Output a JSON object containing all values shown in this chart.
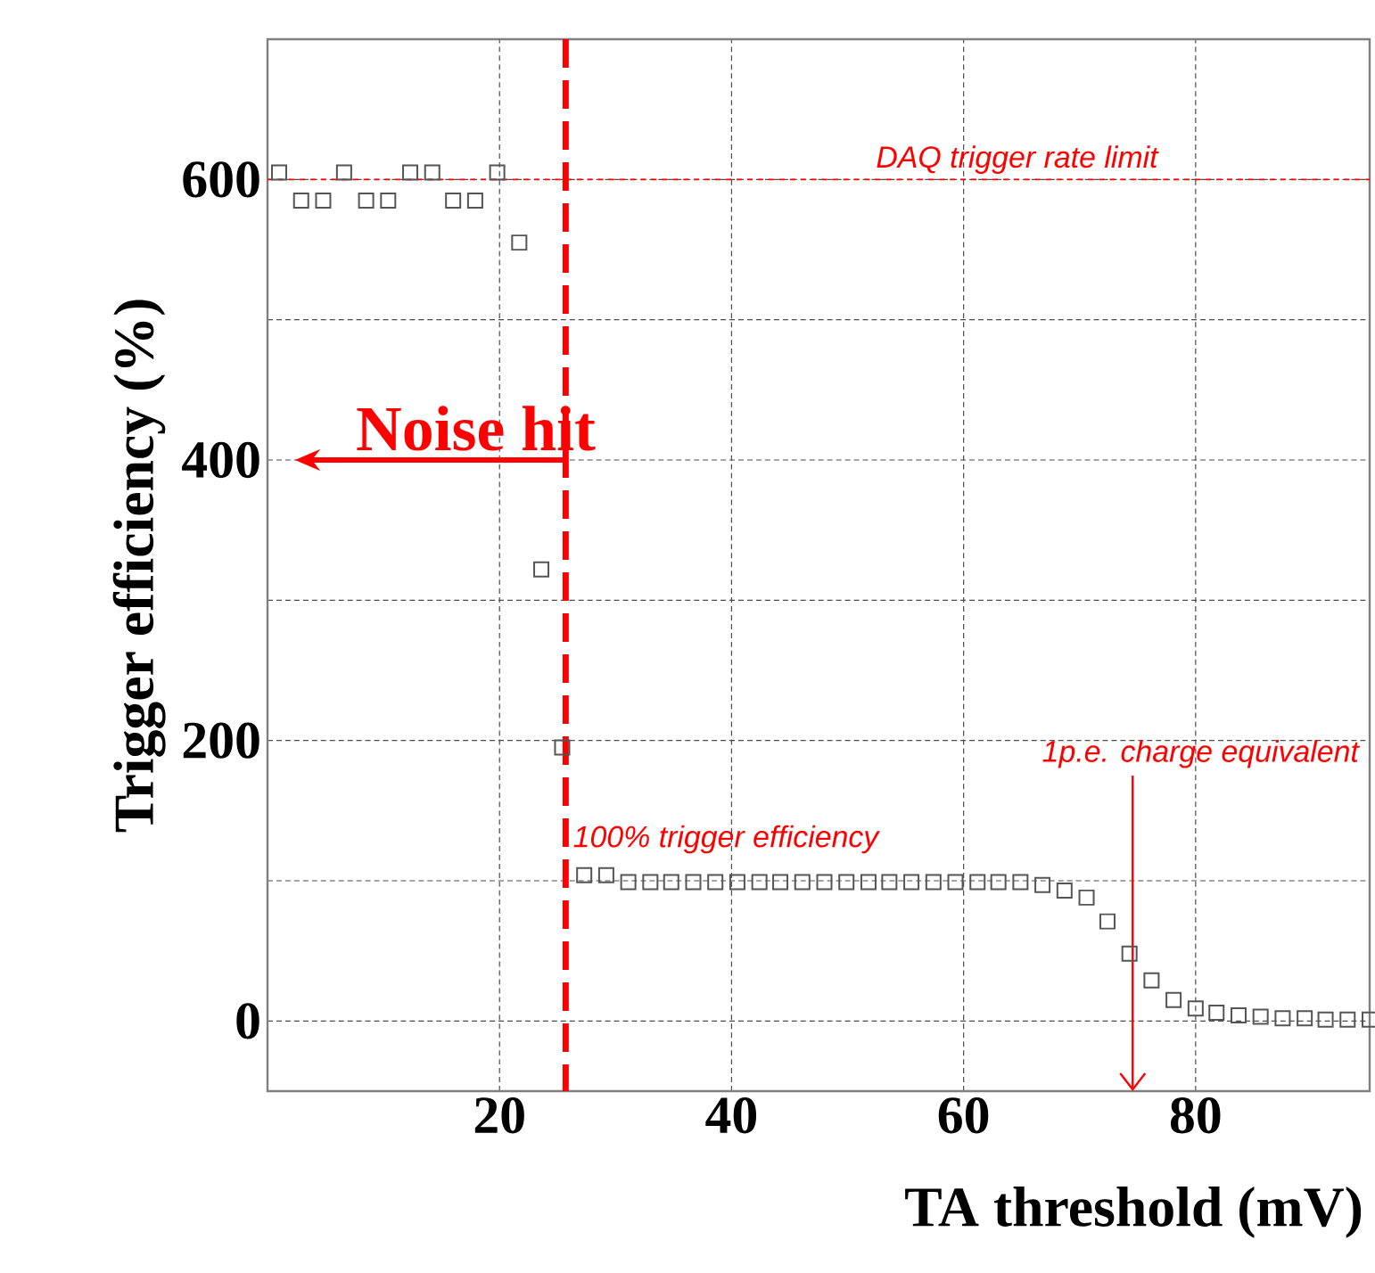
{
  "chart_data": {
    "type": "scatter",
    "xlabel": "TA threshold (mV)",
    "ylabel": "Trigger efficiency (%)",
    "xlim": [
      0,
      95
    ],
    "ylim": [
      -50,
      700
    ],
    "xticks": [
      20,
      40,
      60,
      80
    ],
    "yticks": [
      0,
      {
        "value": 100,
        "label": null
      },
      200,
      {
        "value": 300,
        "label": null
      },
      400,
      {
        "value": 500,
        "label": null
      },
      600
    ],
    "grid": true,
    "marker": "square",
    "series": [
      {
        "color": "#555555",
        "x": [
          1.0,
          2.9,
          4.8,
          6.6,
          8.5,
          10.4,
          12.3,
          14.2,
          16.0,
          17.9,
          19.8,
          21.7,
          23.6,
          25.4,
          27.3,
          29.2,
          31.1,
          33.0,
          34.8,
          36.7,
          38.6,
          40.5,
          42.4,
          44.2,
          46.1,
          48.0,
          49.9,
          51.8,
          53.6,
          55.5,
          57.4,
          59.3,
          61.2,
          63.0,
          64.9,
          66.8,
          68.7,
          70.6,
          72.4,
          74.3,
          76.2,
          78.1,
          80.0,
          81.8,
          83.7,
          85.6,
          87.5,
          89.4,
          91.2,
          93.1,
          95.0
        ],
        "values": [
          605,
          585,
          585,
          605,
          585,
          585,
          605,
          605,
          585,
          585,
          605,
          555,
          322,
          195,
          104,
          104,
          99,
          99,
          99,
          99,
          99,
          99,
          99,
          99,
          99,
          99,
          99,
          99,
          99,
          99,
          99,
          99,
          99,
          99,
          99,
          97,
          93,
          88,
          71,
          48,
          29,
          15,
          9,
          6,
          4,
          3,
          2,
          2,
          1,
          1,
          1
        ]
      }
    ],
    "ref_lines": [
      {
        "axis": "y",
        "value": 600,
        "label": "DAQ trigger rate limit",
        "color": "#ff0000",
        "line_style": "dashed"
      },
      {
        "axis": "x",
        "value": 25.7,
        "color": "#ff0000",
        "line_style": "dashed"
      }
    ],
    "annotations": [
      {
        "text": "Noise hit",
        "x": 25.7,
        "y": 400
      },
      {
        "text": "100% trigger efficiency",
        "x": 26,
        "y": 100
      },
      "1p.e. charge equivalent"
    ]
  }
}
